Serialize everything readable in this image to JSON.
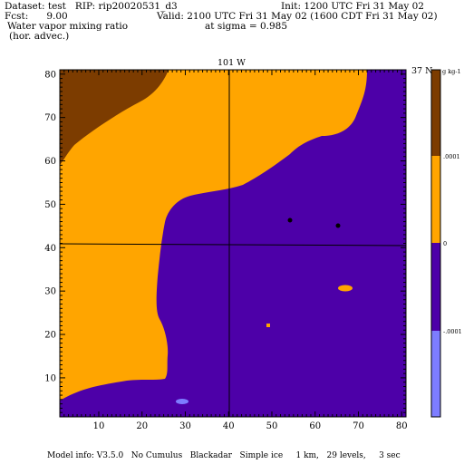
{
  "header": {
    "dataset": "Dataset: test   RIP: rip20020531_d3",
    "init": "Init: 1200 UTC Fri 31 May 02",
    "fcst": "Fcst:      9.00",
    "valid": "Valid: 2100 UTC Fri 31 May 02 (1600 CDT Fri 31 May 02)",
    "field": "Water vapor mixing ratio",
    "sigma": "at sigma = 0.985",
    "advect": "(hor. advec.)"
  },
  "plot": {
    "top_label": "101 W",
    "right_label": "37 N",
    "x_ticks": [
      "10",
      "20",
      "30",
      "40",
      "50",
      "60",
      "70",
      "80"
    ],
    "y_ticks": [
      "10",
      "20",
      "30",
      "40",
      "50",
      "60",
      "70",
      "80"
    ],
    "xlim": [
      1,
      81
    ],
    "ylim": [
      1,
      81
    ]
  },
  "colorbar": {
    "unit_label": "g kg-1",
    "levels": [
      ".0001",
      "0",
      "-.0001"
    ],
    "colors": {
      "brown": "#7c3c00",
      "orange": "#ffa500",
      "purple": "#4d00a8",
      "blue": "#7d7dff"
    }
  },
  "footer": {
    "model_info": "Model info: V3.5.0   No Cumulus   Blackadar   Simple ice     1 km,   29 levels,     3 sec"
  }
}
